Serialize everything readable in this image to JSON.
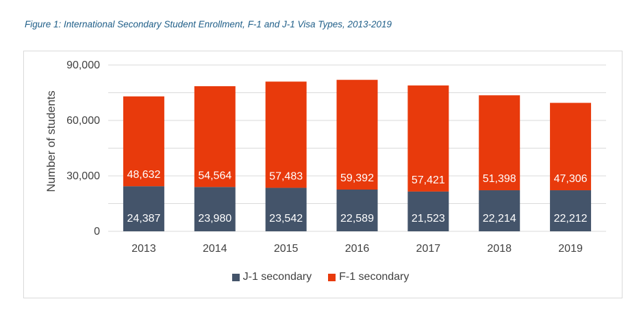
{
  "caption": "Figure 1: International Secondary Student Enrollment, F-1 and J-1 Visa Types, 2013-2019",
  "colors": {
    "j1": "#44546a",
    "f1": "#e83a0c",
    "grid": "#d9d9d9",
    "axis_text": "#404040",
    "bar_label": "#ffffff"
  },
  "chart_data": {
    "type": "bar",
    "stacked": true,
    "title": "",
    "xlabel": "",
    "ylabel": "Number of students",
    "ylim": [
      0,
      90000
    ],
    "yticks": [
      0,
      30000,
      60000,
      90000
    ],
    "ytick_labels": [
      "0",
      "30,000",
      "60,000",
      "90,000"
    ],
    "grid": true,
    "legend_position": "bottom",
    "categories": [
      "2013",
      "2014",
      "2015",
      "2016",
      "2017",
      "2018",
      "2019"
    ],
    "series": [
      {
        "name": "J-1 secondary",
        "color": "#44546a",
        "values": [
          24387,
          23980,
          23542,
          22589,
          21523,
          22214,
          22212
        ],
        "labels": [
          "24,387",
          "23,980",
          "23,542",
          "22,589",
          "21,523",
          "22,214",
          "22,212"
        ]
      },
      {
        "name": "F-1 secondary",
        "color": "#e83a0c",
        "values": [
          48632,
          54564,
          57483,
          59392,
          57421,
          51398,
          47306
        ],
        "labels": [
          "48,632",
          "54,564",
          "57,483",
          "59,392",
          "57,421",
          "51,398",
          "47,306"
        ]
      }
    ]
  }
}
